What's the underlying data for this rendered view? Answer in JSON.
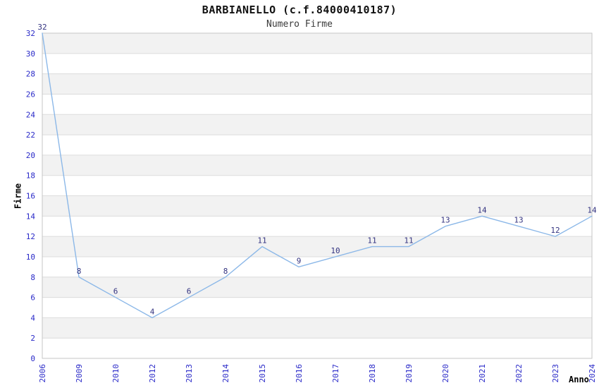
{
  "chart_data": {
    "type": "line",
    "title": "BARBIANELLO (c.f.84000410187)",
    "subtitle": "Numero Firme",
    "xlabel": "Anno",
    "ylabel": "Firme",
    "categories": [
      "2006",
      "2009",
      "2010",
      "2012",
      "2013",
      "2014",
      "2015",
      "2016",
      "2017",
      "2018",
      "2019",
      "2020",
      "2021",
      "2022",
      "2023",
      "2024"
    ],
    "values": [
      32,
      8,
      6,
      4,
      6,
      8,
      11,
      9,
      10,
      11,
      11,
      13,
      14,
      13,
      12,
      14
    ],
    "ylim": [
      0,
      32
    ],
    "ytick_step": 2,
    "grid": true,
    "alternating_bands": true,
    "point_labels_visible": true,
    "legend_position": "none",
    "colors": {
      "line": "#8cb8e8",
      "tick_label": "#2929c8",
      "point_label": "#333380",
      "band": "#f2f2f2",
      "gridline": "#dcdcdc",
      "border": "#c6c6c6",
      "background": "#ffffff",
      "title": "#111111",
      "axis_title": "#000000"
    }
  }
}
